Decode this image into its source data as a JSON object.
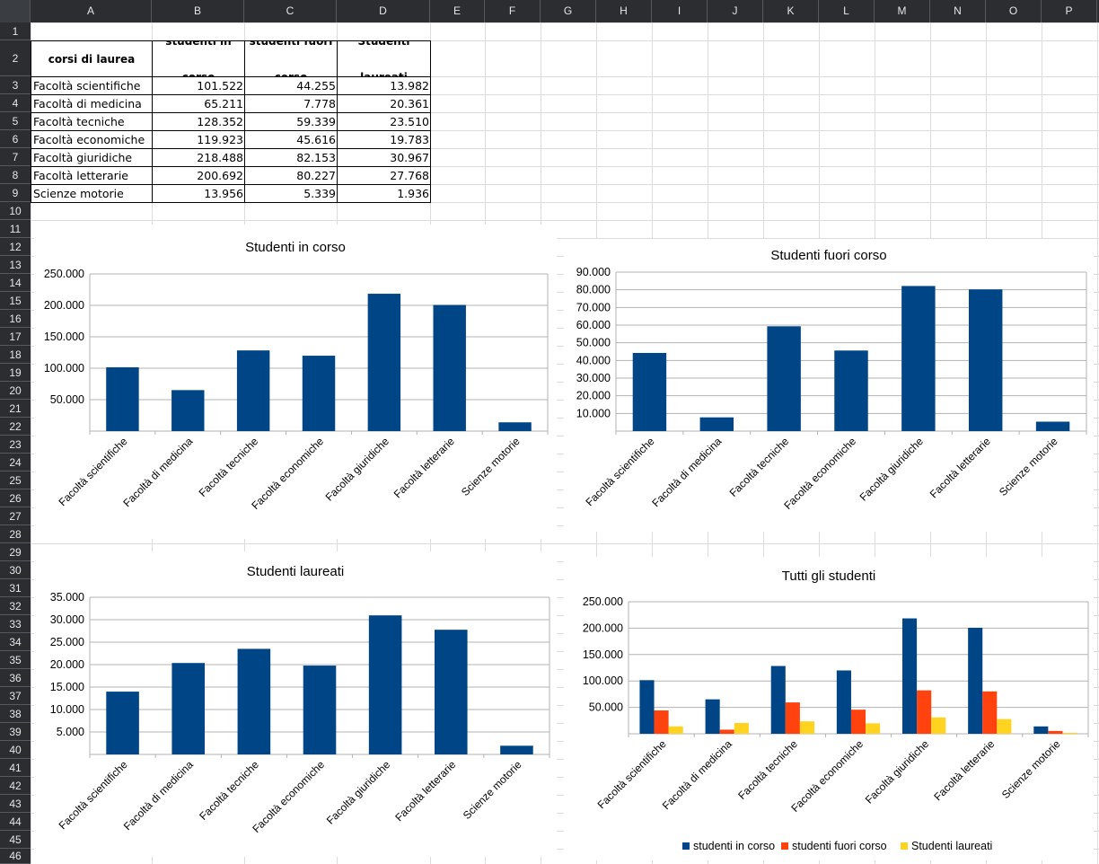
{
  "columns": [
    "A",
    "B",
    "C",
    "D",
    "E",
    "F",
    "G",
    "H",
    "I",
    "J",
    "K",
    "L",
    "M",
    "N",
    "O",
    "P"
  ],
  "rows": [
    "1",
    "2",
    "3",
    "4",
    "5",
    "6",
    "7",
    "8",
    "9",
    "10",
    "11",
    "12",
    "13",
    "14",
    "15",
    "16",
    "17",
    "18",
    "19",
    "20",
    "21",
    "22",
    "23",
    "24",
    "25",
    "26",
    "27",
    "28",
    "29",
    "30",
    "31",
    "32",
    "33",
    "34",
    "35",
    "36",
    "37",
    "38",
    "39",
    "40",
    "41",
    "42",
    "43",
    "44",
    "45",
    "46"
  ],
  "table": {
    "headers": [
      "corsi di laurea",
      "studenti in corso",
      "studenti fuori corso",
      "Studenti laureati"
    ],
    "rows": [
      [
        "Facoltà scientifiche",
        "101.522",
        "44.255",
        "13.982"
      ],
      [
        "Facoltà di medicina",
        "65.211",
        "7.778",
        "20.361"
      ],
      [
        "Facoltà tecniche",
        "128.352",
        "59.339",
        "23.510"
      ],
      [
        "Facoltà economiche",
        "119.923",
        "45.616",
        "19.783"
      ],
      [
        "Facoltà giuridiche",
        "218.488",
        "82.153",
        "30.967"
      ],
      [
        "Facoltà letterarie",
        "200.692",
        "80.227",
        "27.768"
      ],
      [
        "Scienze motorie",
        "13.956",
        "5.339",
        "1.936"
      ]
    ]
  },
  "colors": {
    "blue": "#004586",
    "orange": "#ff420e",
    "yellow": "#ffd320"
  },
  "chart_data": [
    {
      "type": "bar",
      "title": "Studenti in corso",
      "categories": [
        "Facoltà scientifiche",
        "Facoltà di medicina",
        "Facoltà tecniche",
        "Facoltà economiche",
        "Facoltà giuridiche",
        "Facoltà letterarie",
        "Scienze motorie"
      ],
      "series": [
        {
          "values": [
            101522,
            65211,
            128352,
            119923,
            218488,
            200692,
            13956
          ],
          "color": "#004586"
        }
      ],
      "ylim": [
        0,
        250000
      ],
      "yticks": [
        "50.000",
        "100.000",
        "150.000",
        "200.000",
        "250.000"
      ],
      "ytick_values": [
        50000,
        100000,
        150000,
        200000,
        250000
      ],
      "grid": true,
      "legend": []
    },
    {
      "type": "bar",
      "title": "Studenti fuori corso",
      "categories": [
        "Facoltà scientifiche",
        "Facoltà di medicina",
        "Facoltà tecniche",
        "Facoltà economiche",
        "Facoltà giuridiche",
        "Facoltà letterarie",
        "Scienze motorie"
      ],
      "series": [
        {
          "values": [
            44255,
            7778,
            59339,
            45616,
            82153,
            80227,
            5339
          ],
          "color": "#004586"
        }
      ],
      "ylim": [
        0,
        90000
      ],
      "yticks": [
        "10.000",
        "20.000",
        "30.000",
        "40.000",
        "50.000",
        "60.000",
        "70.000",
        "80.000",
        "90.000"
      ],
      "ytick_values": [
        10000,
        20000,
        30000,
        40000,
        50000,
        60000,
        70000,
        80000,
        90000
      ],
      "grid": true,
      "legend": []
    },
    {
      "type": "bar",
      "title": "Studenti laureati",
      "categories": [
        "Facoltà scientifiche",
        "Facoltà di medicina",
        "Facoltà tecniche",
        "Facoltà economiche",
        "Facoltà giuridiche",
        "Facoltà letterarie",
        "Scienze motorie"
      ],
      "series": [
        {
          "values": [
            13982,
            20361,
            23510,
            19783,
            30967,
            27768,
            1936
          ],
          "color": "#004586"
        }
      ],
      "ylim": [
        0,
        35000
      ],
      "yticks": [
        "5.000",
        "10.000",
        "15.000",
        "20.000",
        "25.000",
        "30.000",
        "35.000"
      ],
      "ytick_values": [
        5000,
        10000,
        15000,
        20000,
        25000,
        30000,
        35000
      ],
      "grid": true,
      "legend": []
    },
    {
      "type": "bar",
      "title": "Tutti gli studenti",
      "categories": [
        "Facoltà scientifiche",
        "Facoltà di medicina",
        "Facoltà tecniche",
        "Facoltà economiche",
        "Facoltà giuridiche",
        "Facoltà letterarie",
        "Scienze motorie"
      ],
      "series": [
        {
          "name": "studenti in corso",
          "values": [
            101522,
            65211,
            128352,
            119923,
            218488,
            200692,
            13956
          ],
          "color": "#004586"
        },
        {
          "name": "studenti fuori corso",
          "values": [
            44255,
            7778,
            59339,
            45616,
            82153,
            80227,
            5339
          ],
          "color": "#ff420e"
        },
        {
          "name": "Studenti laureati",
          "values": [
            13982,
            20361,
            23510,
            19783,
            30967,
            27768,
            1936
          ],
          "color": "#ffd320"
        }
      ],
      "ylim": [
        0,
        250000
      ],
      "yticks": [
        "50.000",
        "100.000",
        "150.000",
        "200.000",
        "250.000"
      ],
      "ytick_values": [
        50000,
        100000,
        150000,
        200000,
        250000
      ],
      "grid": true,
      "legend": [
        "studenti in corso",
        "studenti fuori corso",
        "Studenti laureati"
      ]
    }
  ]
}
